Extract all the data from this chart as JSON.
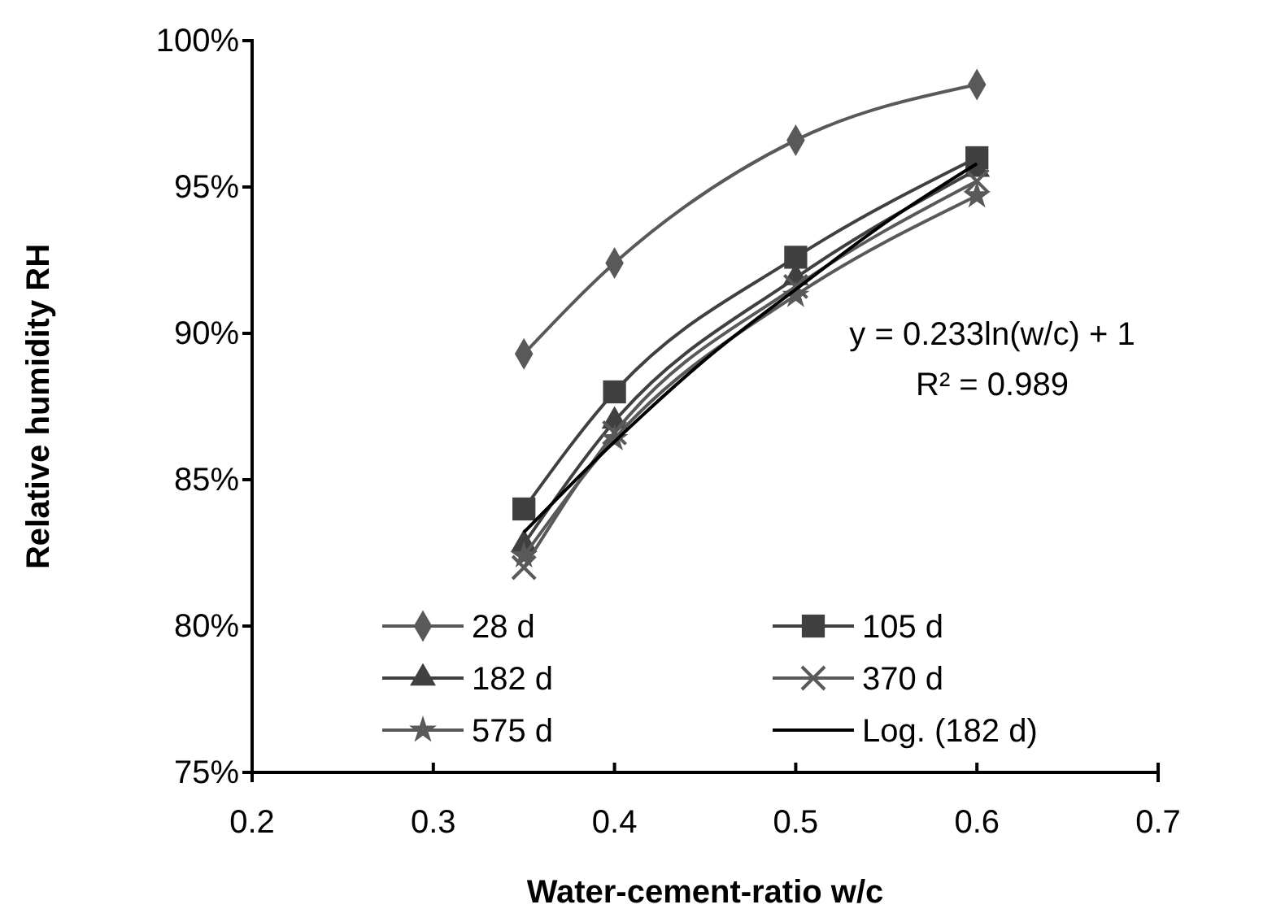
{
  "chart_data": {
    "type": "line",
    "xlabel": "Water-cement-ratio w/c",
    "ylabel": "Relative humidity RH",
    "xlim": [
      0.2,
      0.7
    ],
    "xticks": [
      0.2,
      0.3,
      0.4,
      0.5,
      0.6,
      0.7
    ],
    "ylim": [
      75,
      100
    ],
    "yticks": [
      {
        "value": 75,
        "label": "75%"
      },
      {
        "value": 80,
        "label": "80%"
      },
      {
        "value": 85,
        "label": "85%"
      },
      {
        "value": 90,
        "label": "90%"
      },
      {
        "value": 95,
        "label": "95%"
      },
      {
        "value": 100,
        "label": "100%"
      }
    ],
    "x": [
      0.35,
      0.4,
      0.5,
      0.6
    ],
    "grid": false,
    "legend": "bottom left",
    "annotations": [
      "y = 0.233ln(w/c) + 1",
      "R² = 0.989"
    ],
    "series": [
      {
        "name": "28 d",
        "color": "#595959",
        "marker": "diamond",
        "values": [
          89.3,
          92.4,
          96.6,
          98.5
        ]
      },
      {
        "name": "105 d",
        "color": "#404040",
        "marker": "square",
        "values": [
          84.0,
          88.0,
          92.6,
          96.0
        ]
      },
      {
        "name": "182 d",
        "color": "#404040",
        "marker": "triangle",
        "values": [
          82.8,
          87.0,
          91.9,
          95.6
        ]
      },
      {
        "name": "370 d",
        "color": "#595959",
        "marker": "cross",
        "values": [
          82.0,
          86.6,
          91.6,
          95.2
        ]
      },
      {
        "name": "575 d",
        "color": "#595959",
        "marker": "star",
        "values": [
          82.4,
          86.4,
          91.3,
          94.7
        ]
      },
      {
        "name": "Log. (182 d)",
        "color": "#000000",
        "marker": "none",
        "x": [
          0.35,
          0.4,
          0.45,
          0.5,
          0.55,
          0.6
        ],
        "values": [
          83.2,
          86.3,
          89.1,
          91.5,
          93.8,
          95.8
        ]
      }
    ]
  }
}
